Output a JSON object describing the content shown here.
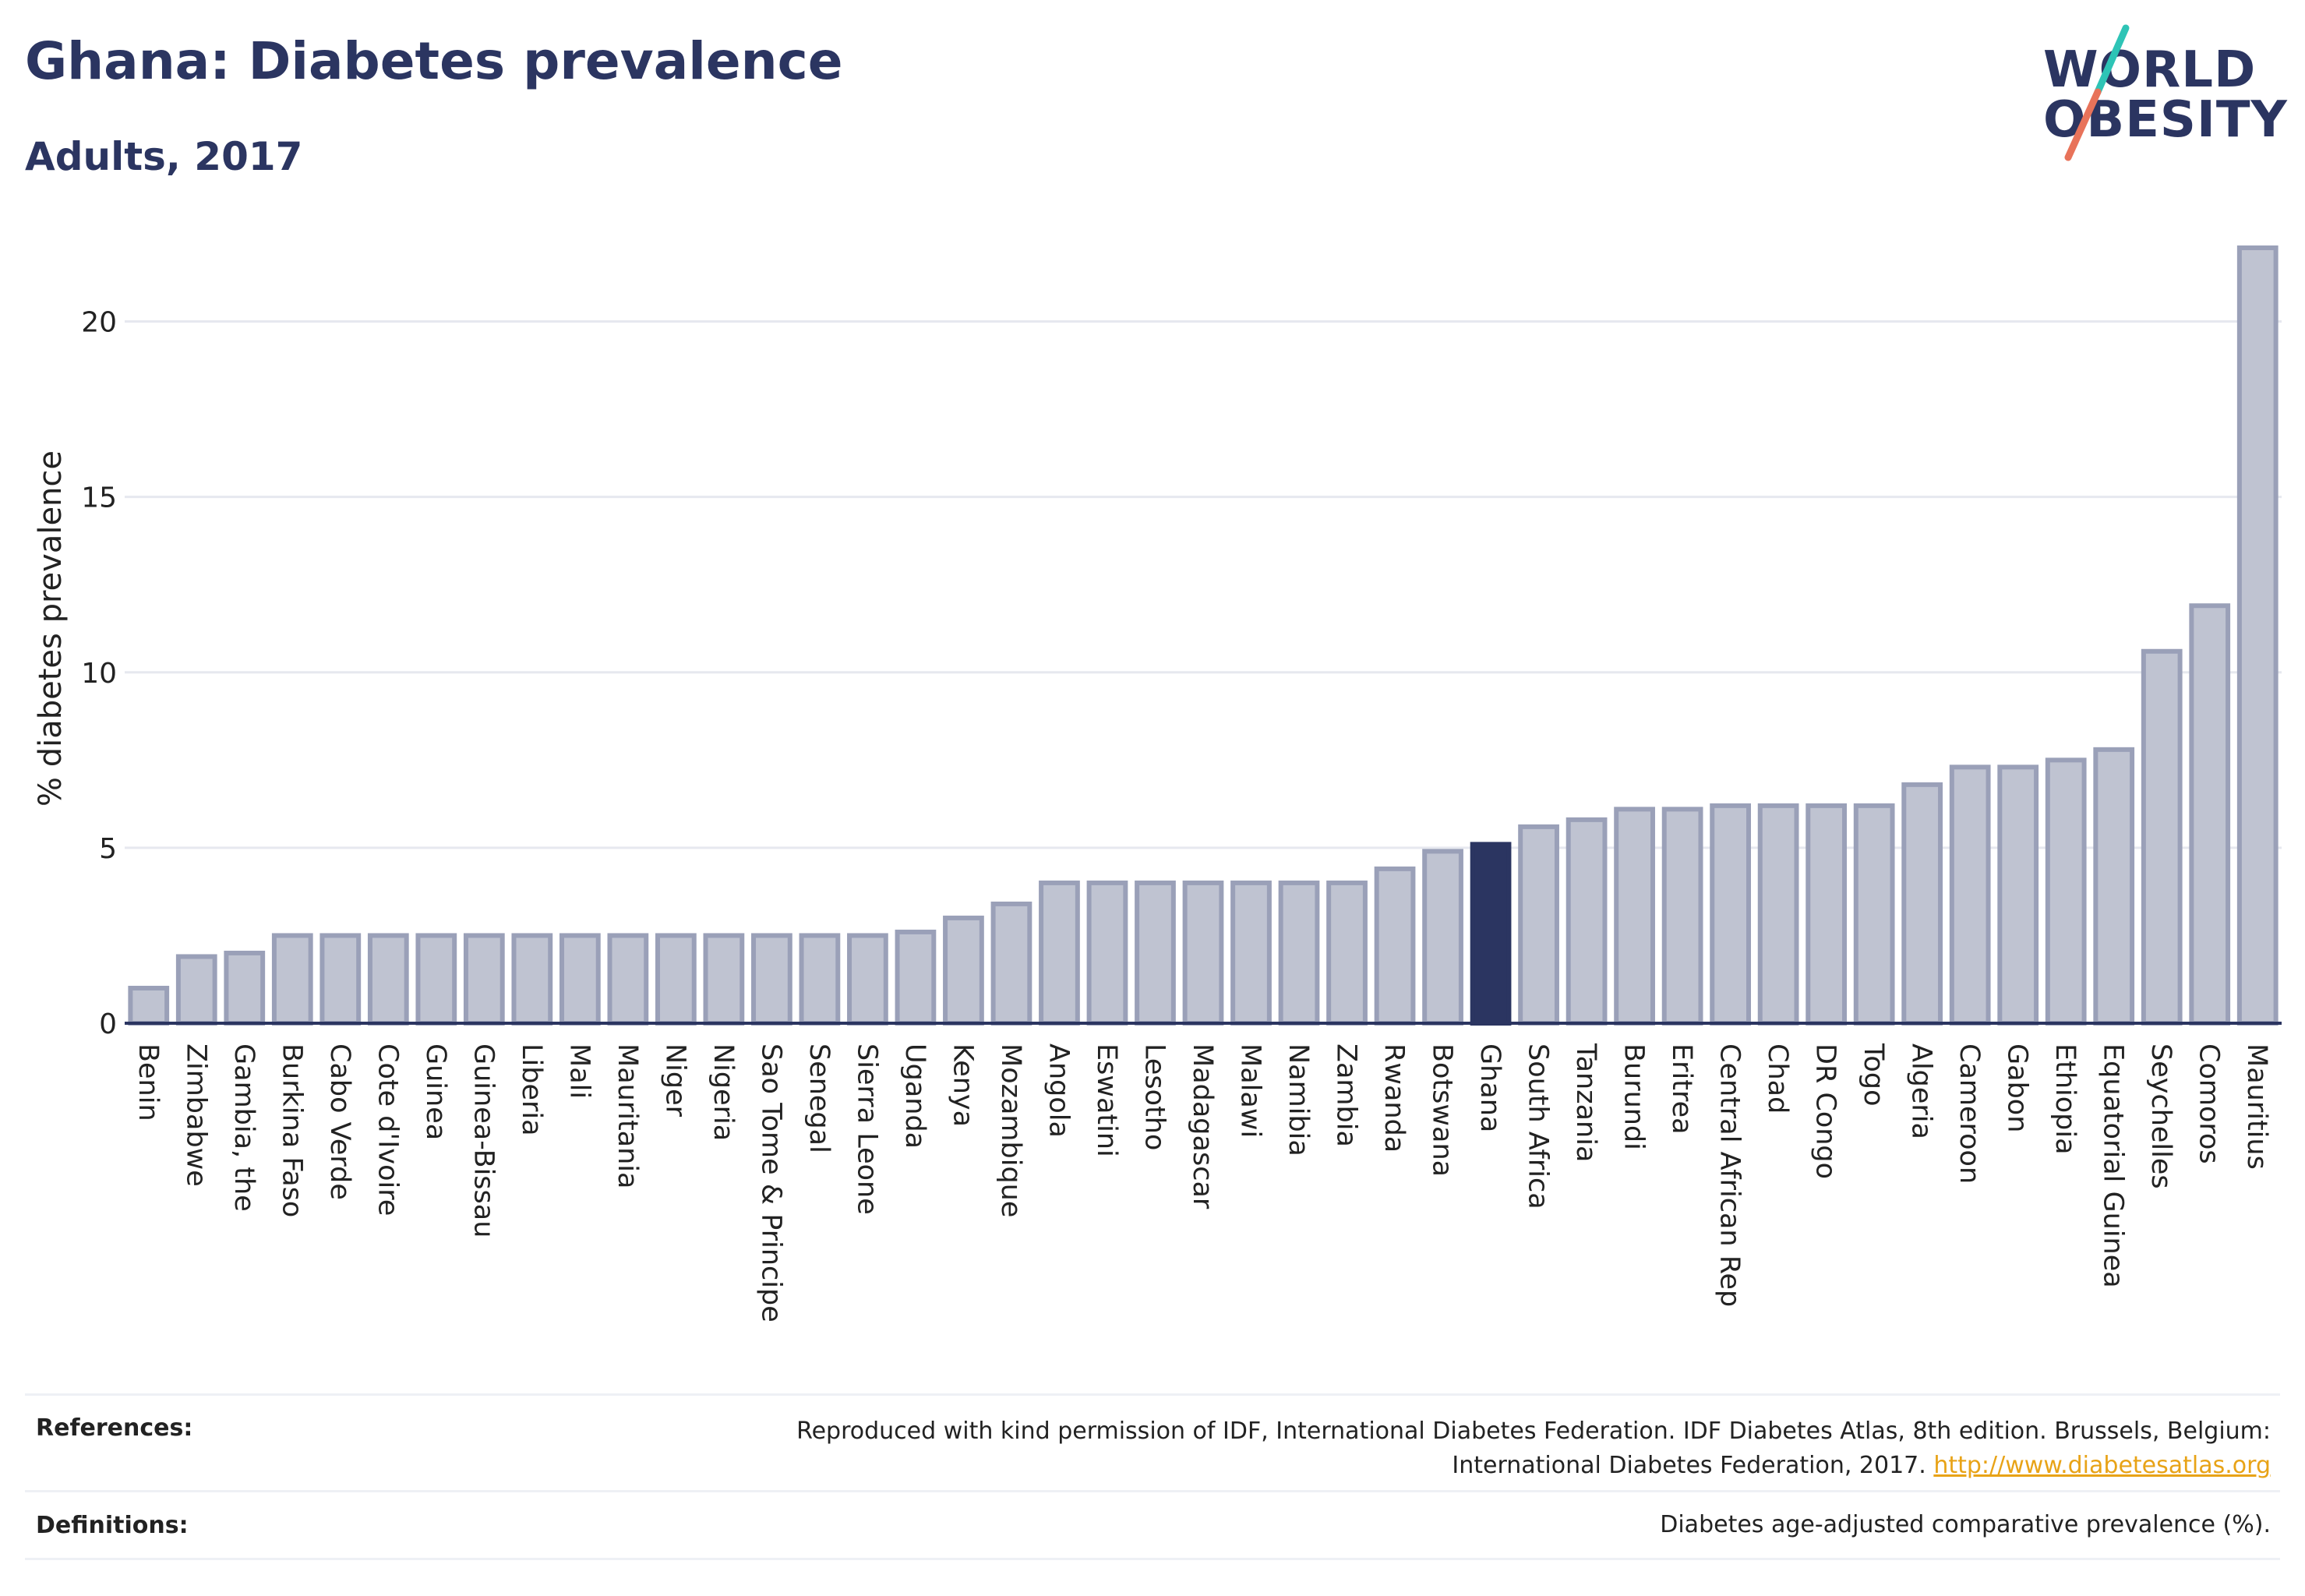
{
  "header": {
    "title": "Ghana: Diabetes prevalence",
    "subtitle": "Adults, 2017"
  },
  "logo": {
    "line1": "WORLD",
    "line2": "OBESITY",
    "slash_colors": [
      "#2ec4b6",
      "#e8735a"
    ]
  },
  "colors": {
    "bar": "#bfc3d1",
    "bar_stroke": "#9aa0b8",
    "highlight": "#2b3561",
    "grid": "#e6e8ef",
    "axis": "#2b3561"
  },
  "chart_data": {
    "type": "bar",
    "title": "Ghana: Diabetes prevalence",
    "subtitle": "Adults, 2017",
    "xlabel": "",
    "ylabel": "% diabetes prevalence",
    "ylim": [
      0,
      22.5
    ],
    "yticks": [
      0,
      5,
      10,
      15,
      20
    ],
    "grid": true,
    "highlight": "Ghana",
    "categories": [
      "Benin",
      "Zimbabwe",
      "Gambia, the",
      "Burkina Faso",
      "Cabo Verde",
      "Cote d'Ivoire",
      "Guinea",
      "Guinea-Bissau",
      "Liberia",
      "Mali",
      "Mauritania",
      "Niger",
      "Nigeria",
      "Sao Tome & Principe",
      "Senegal",
      "Sierra Leone",
      "Uganda",
      "Kenya",
      "Mozambique",
      "Angola",
      "Eswatini",
      "Lesotho",
      "Madagascar",
      "Malawi",
      "Namibia",
      "Zambia",
      "Rwanda",
      "Botswana",
      "Ghana",
      "South Africa",
      "Tanzania",
      "Burundi",
      "Eritrea",
      "Central African Rep",
      "Chad",
      "DR Congo",
      "Togo",
      "Algeria",
      "Cameroon",
      "Gabon",
      "Ethiopia",
      "Equatorial Guinea",
      "Seychelles",
      "Comoros",
      "Mauritius"
    ],
    "values": [
      1.0,
      1.9,
      2.0,
      2.5,
      2.5,
      2.5,
      2.5,
      2.5,
      2.5,
      2.5,
      2.5,
      2.5,
      2.5,
      2.5,
      2.5,
      2.5,
      2.6,
      3.0,
      3.4,
      4.0,
      4.0,
      4.0,
      4.0,
      4.0,
      4.0,
      4.0,
      4.4,
      4.9,
      5.1,
      5.6,
      5.8,
      6.1,
      6.1,
      6.2,
      6.2,
      6.2,
      6.2,
      6.8,
      7.3,
      7.3,
      7.5,
      7.8,
      10.6,
      11.9,
      22.1
    ]
  },
  "references": {
    "label": "References:",
    "line1": "Reproduced with kind permission of IDF, International Diabetes Federation. IDF Diabetes Atlas, 8th edition. Brussels, Belgium:",
    "line2": "International Diabetes Federation, 2017.",
    "link": "http://www.diabetesatlas.org"
  },
  "definitions": {
    "label": "Definitions:",
    "text": "Diabetes age-adjusted comparative prevalence (%)."
  }
}
